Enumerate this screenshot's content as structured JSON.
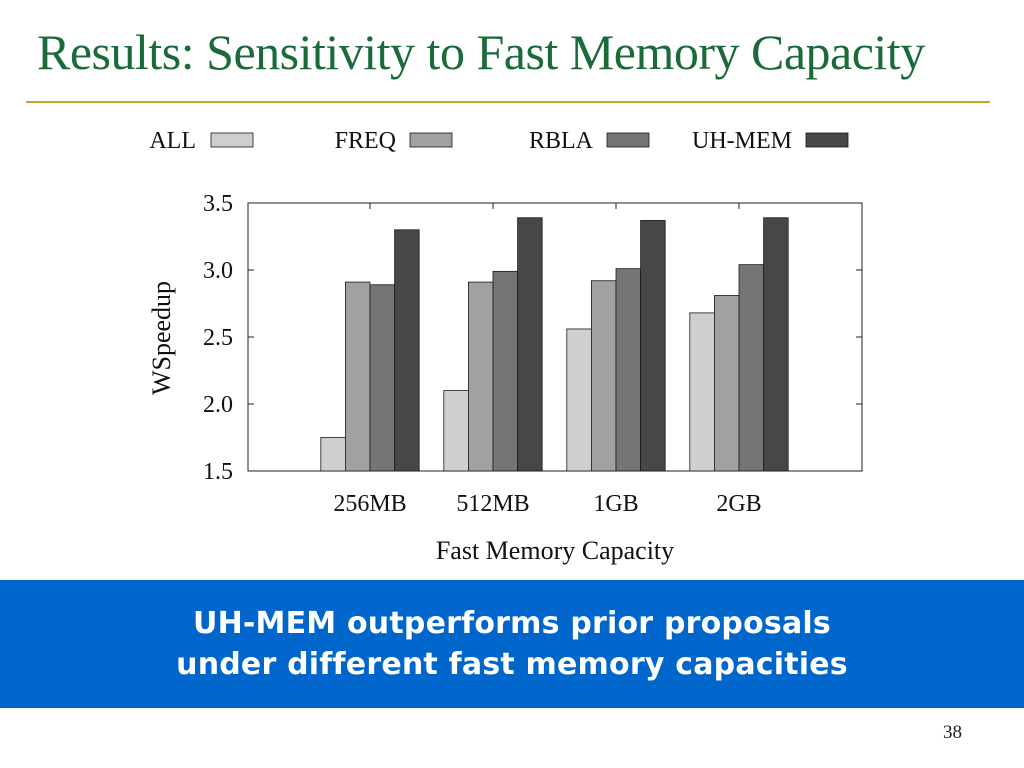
{
  "slide": {
    "title": "Results: Sensitivity to Fast Memory Capacity",
    "banner_line1": "UH-MEM outperforms prior proposals",
    "banner_line2": "under different fast memory capacities",
    "page_number": "38"
  },
  "colors": {
    "title": "#1b6b3a",
    "rule": "#c9a526",
    "banner": "#0066cc"
  },
  "chart_data": {
    "type": "bar",
    "categories": [
      "256MB",
      "512MB",
      "1GB",
      "2GB"
    ],
    "series": [
      {
        "name": "ALL",
        "color": "#cfcfcf",
        "values": [
          1.75,
          2.1,
          2.56,
          2.68
        ]
      },
      {
        "name": "FREQ",
        "color": "#a1a1a1",
        "values": [
          2.91,
          2.91,
          2.92,
          2.81
        ]
      },
      {
        "name": "RBLA",
        "color": "#757575",
        "values": [
          2.89,
          2.99,
          3.01,
          3.04
        ]
      },
      {
        "name": "UH-MEM",
        "color": "#474747",
        "values": [
          3.3,
          3.39,
          3.37,
          3.39
        ]
      }
    ],
    "xlabel": "Fast Memory Capacity",
    "ylabel": "WSpeedup",
    "ylim": [
      1.5,
      3.5
    ],
    "yticks": [
      "1.5",
      "2.0",
      "2.5",
      "3.0",
      "3.5"
    ],
    "legend_position": "top",
    "grid": false
  }
}
